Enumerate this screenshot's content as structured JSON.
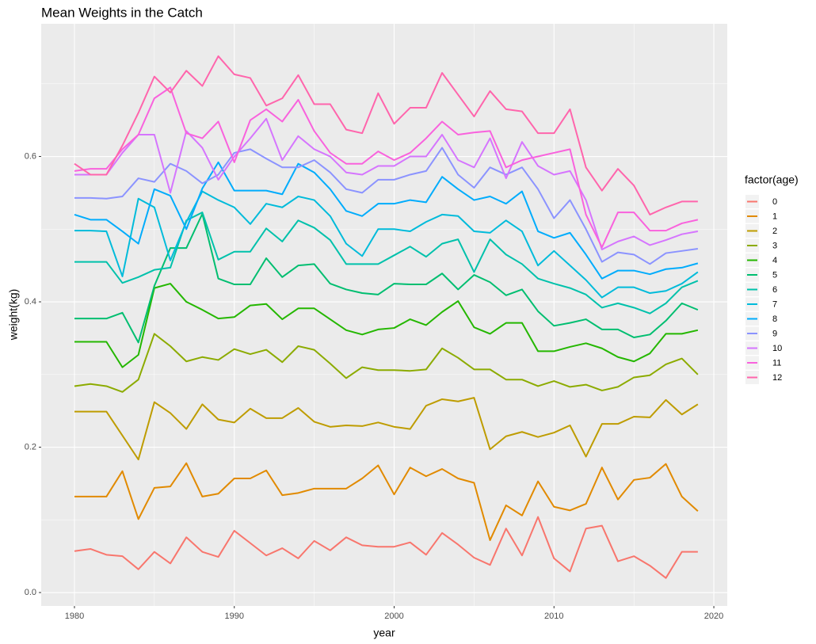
{
  "chart_data": {
    "type": "line",
    "title": "Mean Weights in the Catch",
    "xlabel": "year",
    "ylabel": "weight(kg)",
    "legend_title": "factor(age)",
    "legend_position": "right",
    "grid": true,
    "x": [
      1980,
      1981,
      1982,
      1983,
      1984,
      1985,
      1986,
      1987,
      1988,
      1989,
      1990,
      1991,
      1992,
      1993,
      1994,
      1995,
      1996,
      1997,
      1998,
      1999,
      2000,
      2001,
      2002,
      2003,
      2004,
      2005,
      2006,
      2007,
      2008,
      2009,
      2010,
      2011,
      2012,
      2013,
      2014,
      2015,
      2016,
      2017,
      2018,
      2019
    ],
    "xlim": [
      1977.92,
      2020.84
    ],
    "xticks": [
      1980,
      1990,
      2000,
      2010,
      2020
    ],
    "ylim": [
      -0.0185,
      0.7826
    ],
    "yticks": [
      {
        "value": 0,
        "label": "0.0"
      },
      0.2,
      0.4,
      0.6
    ],
    "series": [
      {
        "name": "0",
        "color": "#F8766D",
        "values": [
          0.057,
          0.06,
          0.052,
          0.05,
          0.032,
          0.056,
          0.04,
          0.076,
          0.056,
          0.049,
          0.085,
          0.068,
          0.051,
          0.061,
          0.047,
          0.071,
          0.058,
          0.076,
          0.065,
          0.063,
          0.063,
          0.069,
          0.052,
          0.082,
          0.066,
          0.048,
          0.038,
          0.088,
          0.051,
          0.104,
          0.047,
          0.029,
          0.088,
          0.092,
          0.043,
          0.05,
          0.037,
          0.02,
          0.056,
          0.056
        ]
      },
      {
        "name": "1",
        "color": "#E18A00",
        "values": [
          0.132,
          0.132,
          0.132,
          0.167,
          0.101,
          0.144,
          0.146,
          0.178,
          0.132,
          0.136,
          0.157,
          0.157,
          0.168,
          0.134,
          0.137,
          0.143,
          0.143,
          0.143,
          0.157,
          0.175,
          0.135,
          0.172,
          0.16,
          0.17,
          0.157,
          0.151,
          0.072,
          0.12,
          0.106,
          0.153,
          0.118,
          0.113,
          0.122,
          0.172,
          0.128,
          0.155,
          0.158,
          0.177,
          0.132,
          0.112
        ]
      },
      {
        "name": "2",
        "color": "#BE9C00",
        "values": [
          0.249,
          0.249,
          0.249,
          0.216,
          0.183,
          0.262,
          0.247,
          0.225,
          0.259,
          0.238,
          0.234,
          0.253,
          0.24,
          0.24,
          0.254,
          0.235,
          0.228,
          0.23,
          0.229,
          0.234,
          0.228,
          0.225,
          0.257,
          0.266,
          0.263,
          0.268,
          0.197,
          0.215,
          0.221,
          0.214,
          0.22,
          0.23,
          0.187,
          0.232,
          0.232,
          0.242,
          0.241,
          0.265,
          0.245,
          0.259
        ]
      },
      {
        "name": "3",
        "color": "#8CAB00",
        "values": [
          0.284,
          0.287,
          0.284,
          0.276,
          0.293,
          0.356,
          0.339,
          0.318,
          0.324,
          0.32,
          0.335,
          0.328,
          0.334,
          0.317,
          0.339,
          0.334,
          0.315,
          0.295,
          0.31,
          0.306,
          0.306,
          0.305,
          0.307,
          0.336,
          0.323,
          0.307,
          0.307,
          0.293,
          0.293,
          0.284,
          0.291,
          0.283,
          0.286,
          0.278,
          0.283,
          0.296,
          0.299,
          0.314,
          0.322,
          0.3
        ]
      },
      {
        "name": "4",
        "color": "#24B700",
        "values": [
          0.345,
          0.345,
          0.345,
          0.31,
          0.327,
          0.419,
          0.425,
          0.4,
          0.389,
          0.377,
          0.379,
          0.395,
          0.397,
          0.376,
          0.391,
          0.391,
          0.376,
          0.361,
          0.355,
          0.362,
          0.364,
          0.376,
          0.368,
          0.386,
          0.401,
          0.365,
          0.356,
          0.371,
          0.371,
          0.332,
          0.332,
          0.338,
          0.343,
          0.336,
          0.324,
          0.318,
          0.329,
          0.356,
          0.356,
          0.361
        ]
      },
      {
        "name": "5",
        "color": "#00BE70",
        "values": [
          0.377,
          0.377,
          0.377,
          0.385,
          0.344,
          0.422,
          0.474,
          0.474,
          0.521,
          0.432,
          0.424,
          0.424,
          0.46,
          0.434,
          0.45,
          0.452,
          0.425,
          0.417,
          0.412,
          0.41,
          0.425,
          0.424,
          0.424,
          0.439,
          0.417,
          0.437,
          0.427,
          0.409,
          0.417,
          0.387,
          0.367,
          0.371,
          0.376,
          0.362,
          0.362,
          0.351,
          0.355,
          0.374,
          0.398,
          0.389
        ]
      },
      {
        "name": "6",
        "color": "#00C1AB",
        "values": [
          0.455,
          0.455,
          0.455,
          0.426,
          0.434,
          0.444,
          0.447,
          0.512,
          0.523,
          0.458,
          0.469,
          0.469,
          0.501,
          0.483,
          0.512,
          0.502,
          0.485,
          0.452,
          0.452,
          0.452,
          0.464,
          0.476,
          0.462,
          0.48,
          0.486,
          0.441,
          0.486,
          0.465,
          0.452,
          0.432,
          0.425,
          0.419,
          0.41,
          0.392,
          0.398,
          0.392,
          0.384,
          0.398,
          0.42,
          0.429
        ]
      },
      {
        "name": "7",
        "color": "#00BBDA",
        "values": [
          0.498,
          0.498,
          0.497,
          0.435,
          0.542,
          0.53,
          0.457,
          0.51,
          0.552,
          0.54,
          0.53,
          0.507,
          0.535,
          0.53,
          0.545,
          0.54,
          0.518,
          0.48,
          0.463,
          0.5,
          0.5,
          0.497,
          0.51,
          0.52,
          0.518,
          0.497,
          0.495,
          0.512,
          0.497,
          0.45,
          0.47,
          0.45,
          0.43,
          0.406,
          0.42,
          0.42,
          0.412,
          0.415,
          0.425,
          0.441
        ]
      },
      {
        "name": "8",
        "color": "#00ACFC",
        "values": [
          0.52,
          0.513,
          0.513,
          0.497,
          0.48,
          0.555,
          0.546,
          0.5,
          0.556,
          0.592,
          0.553,
          0.553,
          0.553,
          0.548,
          0.59,
          0.578,
          0.555,
          0.525,
          0.518,
          0.535,
          0.535,
          0.54,
          0.537,
          0.572,
          0.555,
          0.54,
          0.545,
          0.535,
          0.552,
          0.497,
          0.488,
          0.495,
          0.465,
          0.432,
          0.443,
          0.443,
          0.438,
          0.445,
          0.447,
          0.453
        ]
      },
      {
        "name": "9",
        "color": "#8B93FF",
        "values": [
          0.543,
          0.543,
          0.542,
          0.545,
          0.57,
          0.565,
          0.59,
          0.58,
          0.563,
          0.575,
          0.605,
          0.61,
          0.597,
          0.585,
          0.585,
          0.595,
          0.578,
          0.555,
          0.55,
          0.568,
          0.568,
          0.575,
          0.58,
          0.612,
          0.575,
          0.557,
          0.585,
          0.575,
          0.585,
          0.555,
          0.515,
          0.54,
          0.5,
          0.455,
          0.468,
          0.465,
          0.452,
          0.467,
          0.47,
          0.473
        ]
      },
      {
        "name": "10",
        "color": "#D575FE",
        "values": [
          0.575,
          0.575,
          0.575,
          0.605,
          0.63,
          0.63,
          0.55,
          0.635,
          0.612,
          0.568,
          0.6,
          0.625,
          0.652,
          0.595,
          0.628,
          0.61,
          0.6,
          0.578,
          0.575,
          0.587,
          0.587,
          0.6,
          0.6,
          0.63,
          0.595,
          0.585,
          0.625,
          0.57,
          0.62,
          0.587,
          0.575,
          0.58,
          0.54,
          0.472,
          0.483,
          0.49,
          0.478,
          0.485,
          0.493,
          0.497
        ]
      },
      {
        "name": "11",
        "color": "#F962DD",
        "values": [
          0.58,
          0.583,
          0.583,
          0.61,
          0.63,
          0.68,
          0.695,
          0.632,
          0.625,
          0.648,
          0.592,
          0.65,
          0.665,
          0.648,
          0.678,
          0.635,
          0.605,
          0.59,
          0.59,
          0.607,
          0.595,
          0.605,
          0.625,
          0.648,
          0.63,
          0.633,
          0.635,
          0.585,
          0.595,
          0.6,
          0.605,
          0.61,
          0.52,
          0.475,
          0.523,
          0.523,
          0.498,
          0.498,
          0.508,
          0.513
        ]
      },
      {
        "name": "12",
        "color": "#FF65AC",
        "values": [
          0.59,
          0.575,
          0.575,
          0.615,
          0.66,
          0.71,
          0.688,
          0.718,
          0.697,
          0.738,
          0.713,
          0.708,
          0.67,
          0.68,
          0.712,
          0.672,
          0.672,
          0.637,
          0.632,
          0.687,
          0.645,
          0.667,
          0.667,
          0.715,
          0.685,
          0.655,
          0.69,
          0.665,
          0.662,
          0.632,
          0.632,
          0.665,
          0.585,
          0.553,
          0.583,
          0.56,
          0.52,
          0.53,
          0.538,
          0.538
        ]
      }
    ]
  }
}
